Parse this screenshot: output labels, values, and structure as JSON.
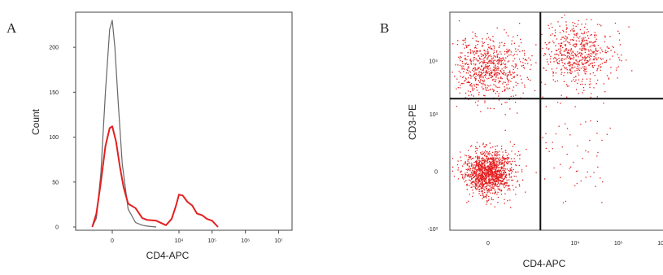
{
  "panels": {
    "a": {
      "letter": "A"
    },
    "b": {
      "letter": "B"
    }
  },
  "chart_data": [
    {
      "type": "line",
      "panel": "A",
      "xlabel": "CD4-APC",
      "ylabel": "Count",
      "x_scale": "biexponential",
      "x_ticks": [
        {
          "label": "0",
          "value": 0
        },
        {
          "label": "10⁴",
          "value": 10000
        },
        {
          "label": "10⁵",
          "value": 100000
        },
        {
          "label": "10⁶",
          "value": 1000000
        },
        {
          "label": "10⁷",
          "value": 10000000
        }
      ],
      "y_ticks": [
        "0",
        "50",
        "100",
        "150",
        "200"
      ],
      "ylim": [
        0,
        230
      ],
      "grid": false,
      "series": [
        {
          "color": "#666666",
          "x": [
            -300,
            -200,
            -120,
            -60,
            -20,
            0,
            20,
            50,
            100,
            200,
            400,
            700,
            1000,
            2000
          ],
          "y": [
            0,
            10,
            60,
            150,
            220,
            230,
            200,
            140,
            70,
            20,
            5,
            2,
            1,
            0
          ]
        },
        {
          "color": "#e41f1f",
          "x": [
            -300,
            -200,
            -120,
            -60,
            -20,
            0,
            30,
            70,
            120,
            200,
            400,
            700,
            1000,
            2000,
            4000,
            6000,
            8000,
            10000,
            13000,
            18000,
            25000,
            35000,
            50000,
            70000,
            100000,
            150000
          ],
          "y": [
            0,
            15,
            50,
            90,
            110,
            112,
            95,
            70,
            45,
            25,
            18,
            12,
            8,
            5,
            5,
            10,
            22,
            33,
            37,
            28,
            22,
            18,
            14,
            8,
            4,
            0
          ]
        }
      ]
    },
    {
      "type": "scatter",
      "panel": "B",
      "xlabel": "CD4-APC",
      "ylabel": "CD3-PE",
      "x_scale": "biexponential",
      "y_scale": "biexponential",
      "x_ticks": [
        {
          "label": "0",
          "value": 0
        },
        {
          "label": "10⁴",
          "value": 10000
        },
        {
          "label": "10⁵",
          "value": 100000
        },
        {
          "label": "10⁶",
          "value": 1000000
        }
      ],
      "y_ticks": [
        {
          "label": "-10³",
          "value": -1000
        },
        {
          "label": "0",
          "value": 0
        },
        {
          "label": "10³",
          "value": 1000
        },
        {
          "label": "10⁴",
          "value": 10000
        }
      ],
      "quadrant_gates": {
        "x": 1500,
        "y": 2000
      },
      "point_color": "#e41f1f",
      "grid": false,
      "populations": [
        {
          "quadrant": "lower-left",
          "center_x": 0,
          "center_y": 0,
          "relative_density": 1.0
        },
        {
          "quadrant": "upper-left",
          "center_x": 0,
          "center_y": 8000,
          "relative_density": 0.55
        },
        {
          "quadrant": "upper-right",
          "center_x": 12000,
          "center_y": 14000,
          "relative_density": 0.45
        },
        {
          "quadrant": "lower-right",
          "center_x": 8000,
          "center_y": 200,
          "relative_density": 0.05
        }
      ]
    }
  ]
}
